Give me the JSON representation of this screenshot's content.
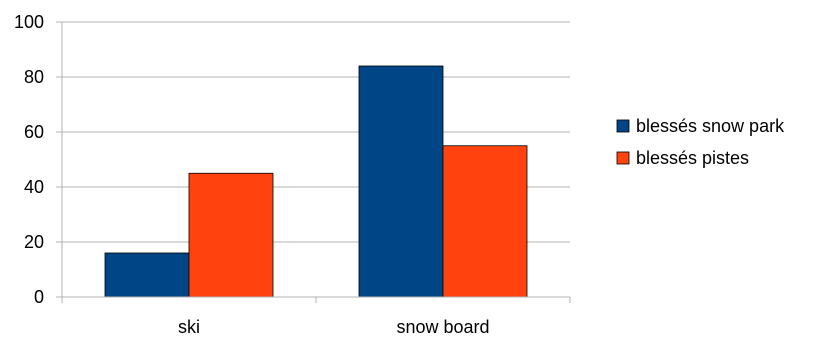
{
  "chart_data": {
    "type": "bar",
    "categories": [
      "ski",
      "snow board"
    ],
    "series": [
      {
        "name": "blessés snow park",
        "values": [
          16,
          84
        ],
        "color": "#004586"
      },
      {
        "name": "blessés pistes",
        "values": [
          45,
          55
        ],
        "color": "#ff420e"
      }
    ],
    "ylim": [
      0,
      100
    ],
    "yticks": [
      0,
      20,
      40,
      60,
      80,
      100
    ],
    "grid": true,
    "legend_position": "right"
  }
}
